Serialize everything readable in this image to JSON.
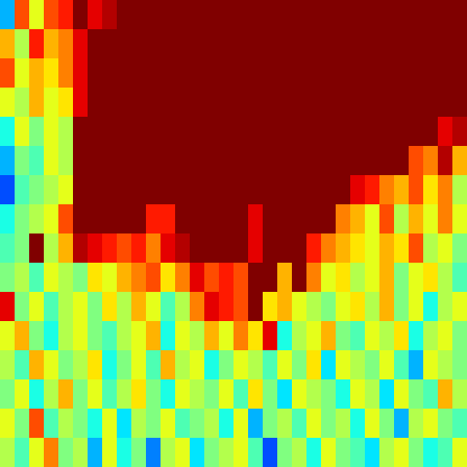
{
  "chart_data": {
    "type": "heatmap",
    "tick_labels": false,
    "color_range": [
      0,
      1
    ],
    "cells": [
      [
        0.3,
        0.8,
        0.6,
        0.8,
        0.85,
        1,
        0.9,
        0.95,
        1,
        1,
        1,
        1,
        1,
        1,
        1,
        1,
        1,
        1,
        1,
        1,
        1,
        1,
        1,
        1,
        1,
        1,
        1,
        1,
        1,
        1,
        1,
        1
      ],
      [
        0.7,
        0.55,
        0.85,
        0.7,
        0.75,
        0.9,
        1,
        1,
        1,
        1,
        1,
        1,
        1,
        1,
        1,
        1,
        1,
        1,
        1,
        1,
        1,
        1,
        1,
        1,
        1,
        1,
        1,
        1,
        1,
        1,
        1,
        1
      ],
      [
        0.8,
        0.6,
        0.7,
        0.65,
        0.75,
        0.9,
        1,
        1,
        1,
        1,
        1,
        1,
        1,
        1,
        1,
        1,
        1,
        1,
        1,
        1,
        1,
        1,
        1,
        1,
        1,
        1,
        1,
        1,
        1,
        1,
        1,
        1
      ],
      [
        0.6,
        0.55,
        0.7,
        0.6,
        0.65,
        0.9,
        1,
        1,
        1,
        1,
        1,
        1,
        1,
        1,
        1,
        1,
        1,
        1,
        1,
        1,
        1,
        1,
        1,
        1,
        1,
        1,
        1,
        1,
        1,
        1,
        1,
        1
      ],
      [
        0.4,
        0.6,
        0.5,
        0.6,
        0.55,
        1,
        1,
        1,
        1,
        1,
        1,
        1,
        1,
        1,
        1,
        1,
        1,
        1,
        1,
        1,
        1,
        1,
        1,
        1,
        1,
        1,
        1,
        1,
        1,
        1,
        0.9,
        0.95
      ],
      [
        0.3,
        0.5,
        0.45,
        0.6,
        0.55,
        1,
        1,
        1,
        1,
        1,
        1,
        1,
        1,
        1,
        1,
        1,
        1,
        1,
        1,
        1,
        1,
        1,
        1,
        1,
        1,
        1,
        1,
        1,
        0.8,
        0.75,
        0.95,
        0.7
      ],
      [
        0.2,
        0.45,
        0.5,
        0.55,
        0.6,
        1,
        1,
        1,
        1,
        1,
        1,
        1,
        1,
        1,
        1,
        1,
        1,
        1,
        1,
        1,
        1,
        1,
        1,
        1,
        0.9,
        0.85,
        0.75,
        0.7,
        0.8,
        0.65,
        0.75,
        0.55
      ],
      [
        0.4,
        0.5,
        0.55,
        0.6,
        0.8,
        1,
        1,
        1,
        1,
        1,
        0.85,
        0.85,
        1,
        1,
        1,
        1,
        1,
        0.9,
        1,
        1,
        1,
        1,
        1,
        0.75,
        0.7,
        0.6,
        0.8,
        0.55,
        0.7,
        0.6,
        0.75,
        0.6
      ],
      [
        0.45,
        0.5,
        1,
        0.55,
        0.7,
        0.95,
        0.9,
        0.85,
        0.8,
        0.85,
        0.75,
        0.9,
        0.95,
        1,
        1,
        1,
        1,
        0.9,
        1,
        1,
        1,
        0.85,
        0.75,
        0.7,
        0.65,
        0.6,
        0.7,
        0.65,
        0.8,
        0.55,
        0.6,
        0.5
      ],
      [
        0.5,
        0.55,
        0.45,
        0.6,
        0.55,
        0.5,
        0.65,
        0.6,
        0.7,
        0.75,
        0.8,
        0.65,
        0.75,
        0.9,
        0.8,
        0.85,
        0.8,
        1,
        1,
        0.7,
        1,
        0.75,
        0.6,
        0.65,
        0.55,
        0.6,
        0.7,
        0.5,
        0.6,
        0.65,
        0.55,
        0.45
      ],
      [
        0.9,
        0.5,
        0.6,
        0.45,
        0.55,
        0.6,
        0.5,
        0.65,
        0.55,
        0.7,
        0.6,
        0.45,
        0.55,
        0.75,
        0.9,
        0.85,
        0.8,
        1,
        0.65,
        0.7,
        0.6,
        0.55,
        0.5,
        0.6,
        0.65,
        0.55,
        0.7,
        0.5,
        0.6,
        0.4,
        0.55,
        0.6
      ],
      [
        0.6,
        0.7,
        0.5,
        0.4,
        0.55,
        0.6,
        0.5,
        0.45,
        0.55,
        0.6,
        0.7,
        0.4,
        0.6,
        0.55,
        0.7,
        0.6,
        0.75,
        0.65,
        0.9,
        0.4,
        0.55,
        0.6,
        0.7,
        0.5,
        0.45,
        0.6,
        0.55,
        0.65,
        0.4,
        0.55,
        0.6,
        0.5
      ],
      [
        0.55,
        0.45,
        0.7,
        0.6,
        0.5,
        0.55,
        0.65,
        0.4,
        0.5,
        0.6,
        0.45,
        0.7,
        0.55,
        0.6,
        0.4,
        0.5,
        0.6,
        0.55,
        0.45,
        0.6,
        0.5,
        0.65,
        0.35,
        0.6,
        0.55,
        0.5,
        0.6,
        0.45,
        0.3,
        0.6,
        0.55,
        0.5
      ],
      [
        0.5,
        0.6,
        0.4,
        0.55,
        0.7,
        0.5,
        0.6,
        0.45,
        0.55,
        0.65,
        0.5,
        0.4,
        0.6,
        0.55,
        0.5,
        0.6,
        0.45,
        0.65,
        0.5,
        0.35,
        0.6,
        0.55,
        0.5,
        0.4,
        0.6,
        0.55,
        0.35,
        0.6,
        0.5,
        0.45,
        0.7,
        0.55
      ],
      [
        0.6,
        0.5,
        0.8,
        0.45,
        0.55,
        0.5,
        0.4,
        0.6,
        0.35,
        0.55,
        0.5,
        0.6,
        0.45,
        0.5,
        0.55,
        0.4,
        0.6,
        0.3,
        0.5,
        0.55,
        0.45,
        0.6,
        0.5,
        0.55,
        0.4,
        0.6,
        0.5,
        0.3,
        0.55,
        0.6,
        0.5,
        0.45
      ],
      [
        0.55,
        0.45,
        0.6,
        0.75,
        0.5,
        0.55,
        0.3,
        0.6,
        0.4,
        0.5,
        0.25,
        0.55,
        0.6,
        0.35,
        0.5,
        0.55,
        0.6,
        0.45,
        0.2,
        0.5,
        0.55,
        0.4,
        0.6,
        0.5,
        0.45,
        0.35,
        0.55,
        0.6,
        0.5,
        0.4,
        0.45,
        0.6
      ]
    ]
  }
}
